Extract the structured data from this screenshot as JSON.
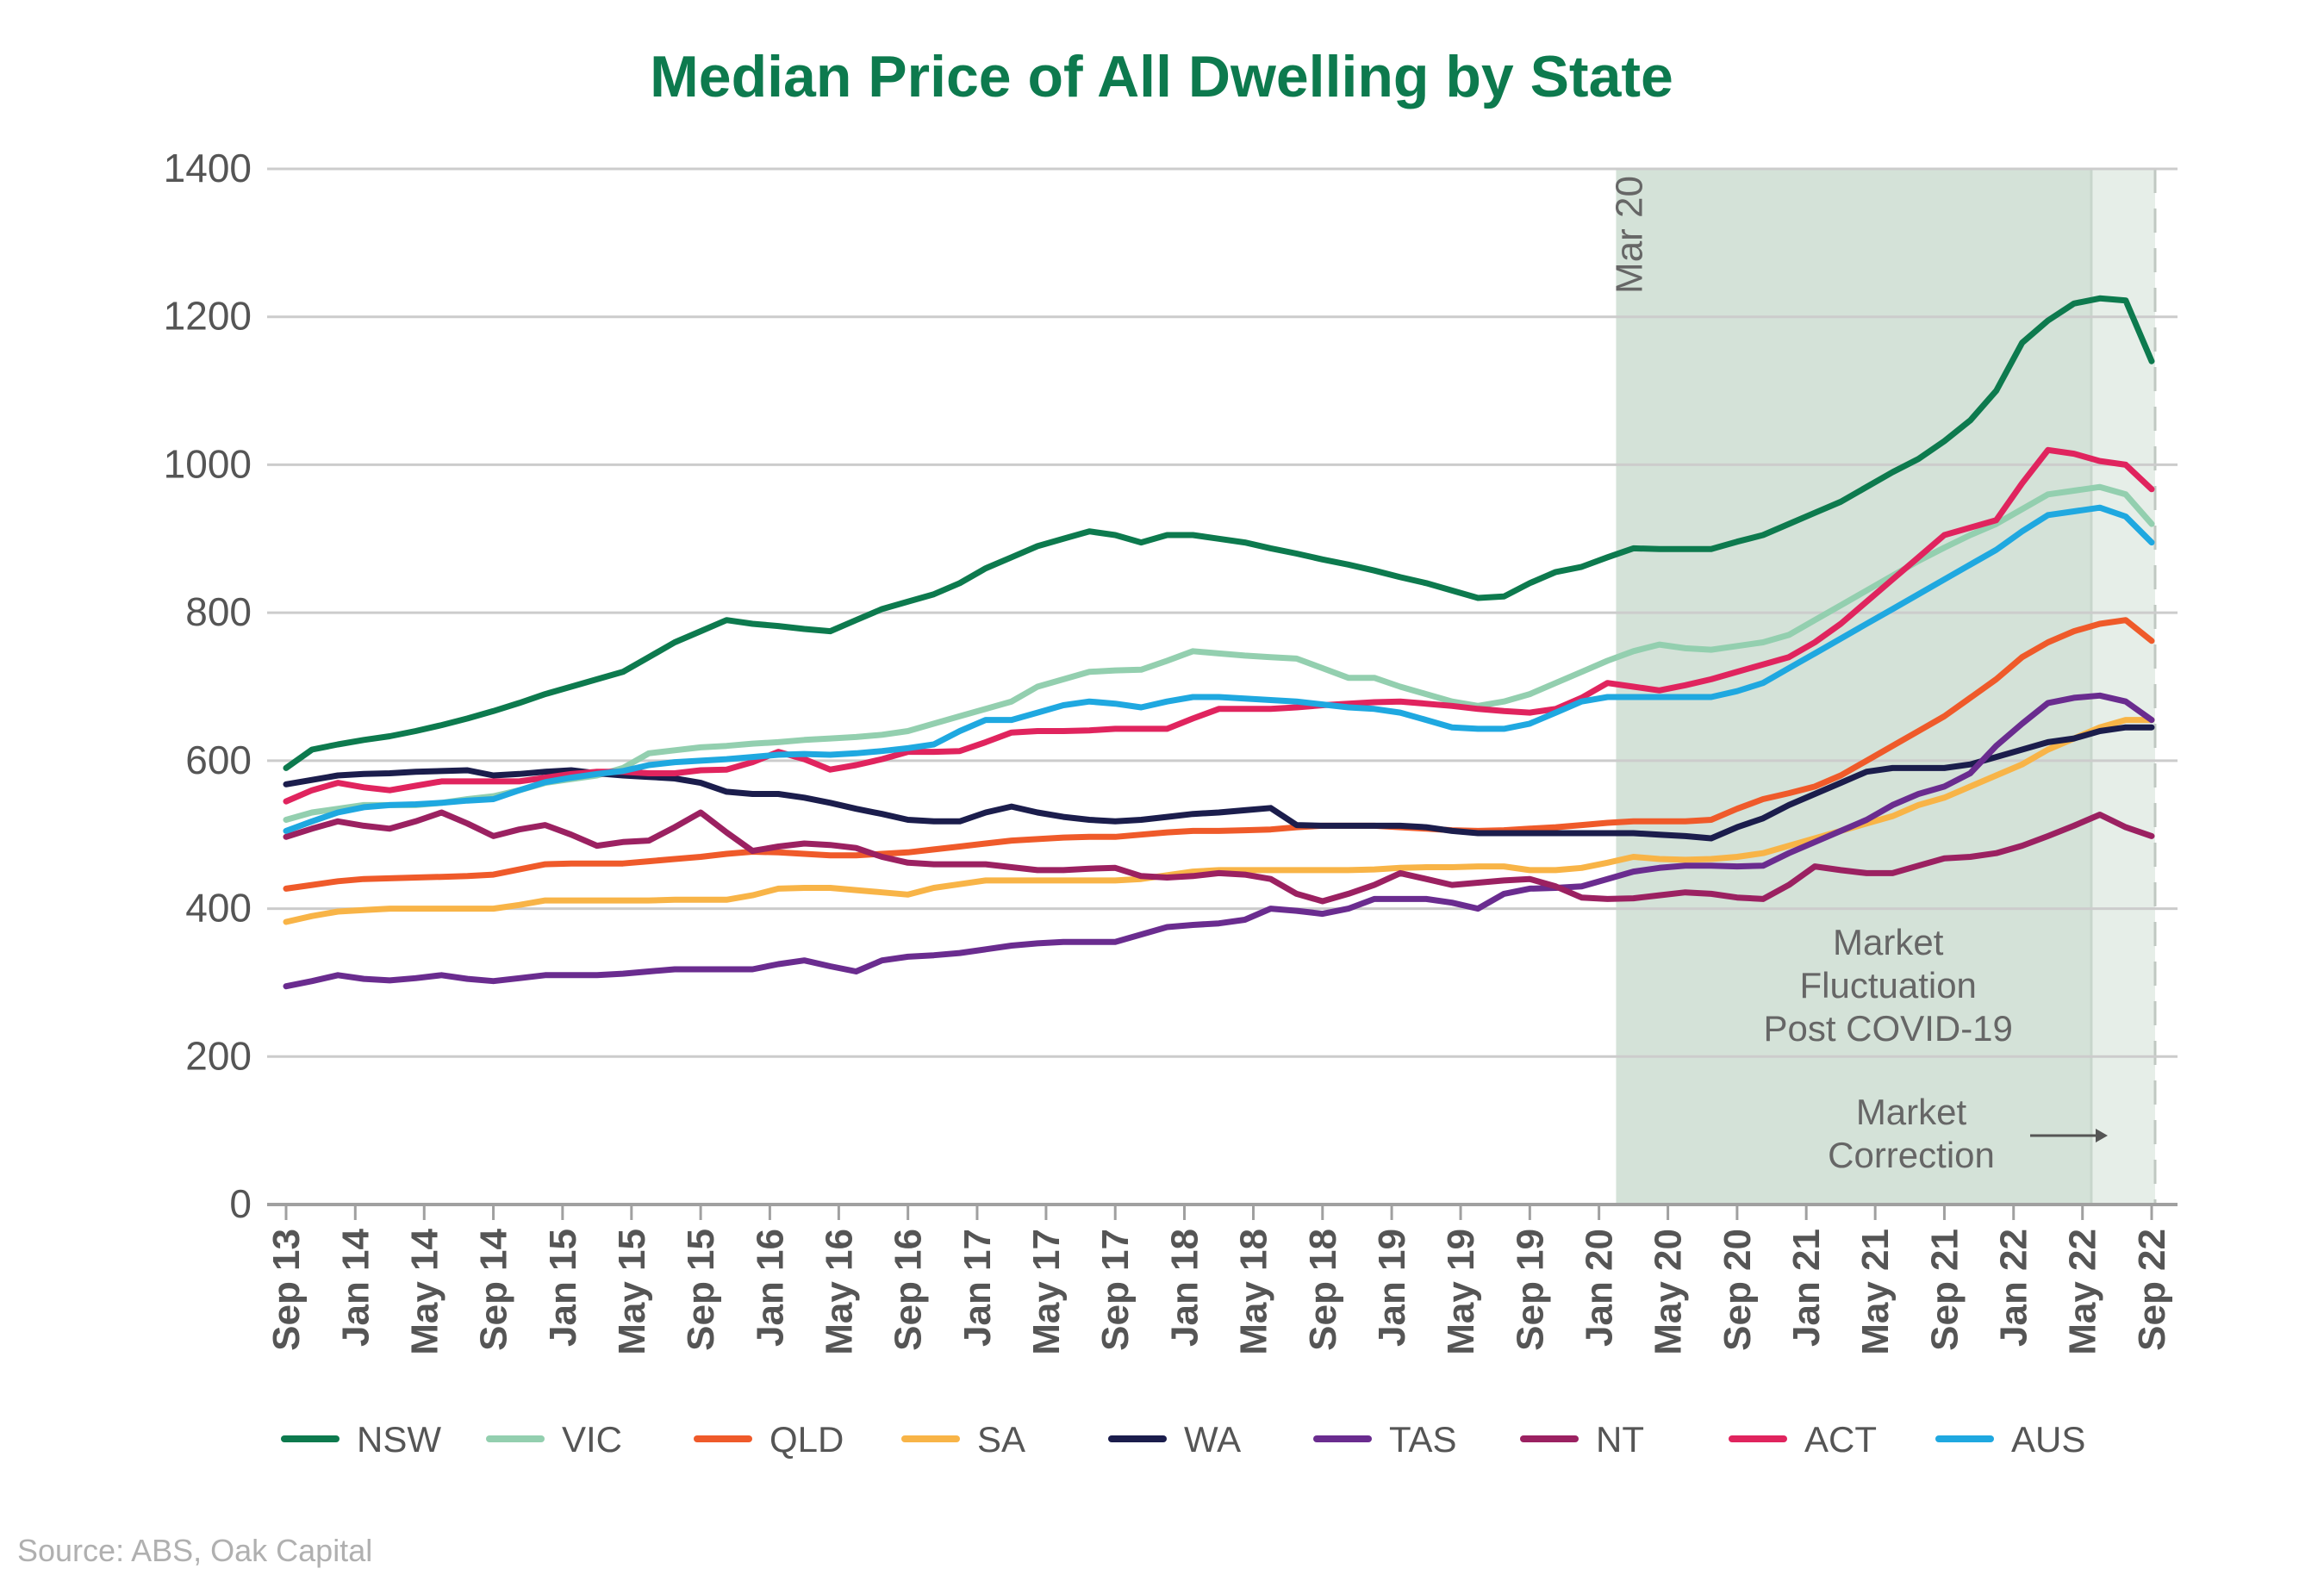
{
  "chart_data": {
    "type": "line",
    "title": "Median Price of All Dwelling by State",
    "source": "Source: ABS, Oak Capital",
    "xlabel": "",
    "ylabel": "",
    "ylim": [
      0,
      1400
    ],
    "yticks": [
      0,
      200,
      400,
      600,
      800,
      1000,
      1200,
      1400
    ],
    "grid": true,
    "legend_position": "bottom",
    "x_tick_labels": [
      "Sep 13",
      "Jan 14",
      "May 14",
      "Sep 14",
      "Jan 15",
      "May 15",
      "Sep 15",
      "Jan 16",
      "May 16",
      "Sep 16",
      "Jan 17",
      "May 17",
      "Sep 17",
      "Jan 18",
      "May 18",
      "Sep 18",
      "Jan 19",
      "May 19",
      "Sep 19",
      "Jan 20",
      "May 20",
      "Sep 20",
      "Jan 21",
      "May 21",
      "Sep 21",
      "Jan 22",
      "May 22",
      "Sep 22"
    ],
    "x_tick_index": [
      0,
      2.67,
      5.33,
      8,
      10.67,
      13.33,
      16,
      18.67,
      21.33,
      24,
      26.67,
      29.33,
      32,
      34.67,
      37.33,
      40,
      42.67,
      45.33,
      48,
      50.67,
      53.33,
      56,
      58.67,
      61.33,
      64,
      66.67,
      69.33,
      72
    ],
    "x_count": 73,
    "series": [
      {
        "name": "NSW",
        "color": "#0d7a4e",
        "values": [
          590,
          615,
          622,
          628,
          633,
          640,
          648,
          657,
          667,
          678,
          690,
          700,
          710,
          720,
          740,
          760,
          775,
          790,
          785,
          782,
          778,
          775,
          790,
          805,
          815,
          825,
          840,
          860,
          875,
          890,
          900,
          910,
          905,
          895,
          905,
          905,
          900,
          895,
          887,
          880,
          872,
          865,
          857,
          848,
          840,
          830,
          820,
          822,
          840,
          855,
          862,
          875,
          887,
          886,
          886,
          886,
          896,
          905,
          920,
          935,
          950,
          970,
          990,
          1008,
          1032,
          1060,
          1100,
          1165,
          1195,
          1218,
          1225,
          1222,
          1140
        ]
      },
      {
        "name": "VIC",
        "color": "#93cfaf",
        "values": [
          520,
          530,
          535,
          540,
          540,
          540,
          543,
          548,
          552,
          560,
          570,
          575,
          580,
          590,
          610,
          614,
          618,
          620,
          623,
          625,
          628,
          630,
          632,
          635,
          640,
          650,
          660,
          670,
          680,
          700,
          710,
          720,
          722,
          723,
          735,
          748,
          745,
          742,
          740,
          738,
          725,
          712,
          712,
          700,
          690,
          680,
          674,
          680,
          690,
          705,
          720,
          735,
          748,
          757,
          752,
          750,
          755,
          760,
          770,
          790,
          810,
          830,
          850,
          870,
          888,
          905,
          920,
          940,
          960,
          965,
          970,
          960,
          920
        ]
      },
      {
        "name": "QLD",
        "color": "#ef5a2a",
        "values": [
          427,
          432,
          437,
          440,
          441,
          442,
          443,
          444,
          446,
          453,
          460,
          461,
          461,
          461,
          464,
          467,
          470,
          474,
          477,
          476,
          474,
          472,
          472,
          474,
          476,
          480,
          484,
          488,
          492,
          494,
          496,
          497,
          497,
          500,
          503,
          505,
          505,
          506,
          507,
          510,
          512,
          512,
          512,
          510,
          508,
          506,
          505,
          506,
          508,
          510,
          513,
          516,
          518,
          518,
          518,
          520,
          535,
          548,
          556,
          565,
          580,
          600,
          620,
          640,
          660,
          685,
          710,
          740,
          760,
          775,
          785,
          790,
          762
        ]
      },
      {
        "name": "SA",
        "color": "#f8b447",
        "values": [
          382,
          390,
          396,
          398,
          400,
          400,
          400,
          400,
          400,
          405,
          411,
          411,
          411,
          411,
          411,
          412,
          412,
          412,
          418,
          427,
          428,
          428,
          425,
          422,
          419,
          428,
          433,
          438,
          438,
          438,
          438,
          438,
          438,
          440,
          445,
          450,
          452,
          452,
          452,
          452,
          452,
          452,
          453,
          455,
          456,
          456,
          457,
          457,
          452,
          452,
          455,
          462,
          470,
          467,
          466,
          467,
          470,
          475,
          485,
          495,
          505,
          515,
          525,
          540,
          550,
          565,
          580,
          595,
          615,
          630,
          645,
          655,
          655
        ]
      },
      {
        "name": "WA",
        "color": "#1b1d4c",
        "values": [
          568,
          574,
          580,
          582,
          583,
          585,
          586,
          587,
          580,
          582,
          585,
          587,
          583,
          580,
          578,
          576,
          570,
          558,
          555,
          555,
          550,
          543,
          535,
          528,
          520,
          518,
          518,
          530,
          538,
          530,
          524,
          520,
          518,
          520,
          524,
          528,
          530,
          533,
          536,
          513,
          512,
          512,
          512,
          512,
          510,
          505,
          502,
          502,
          502,
          502,
          502,
          502,
          502,
          500,
          498,
          495,
          510,
          522,
          540,
          555,
          570,
          585,
          590,
          590,
          590,
          595,
          605,
          615,
          625,
          630,
          640,
          645,
          645
        ]
      },
      {
        "name": "TAS",
        "color": "#6a2c8f",
        "values": [
          295,
          302,
          310,
          305,
          303,
          306,
          310,
          305,
          302,
          306,
          310,
          310,
          310,
          312,
          315,
          318,
          318,
          318,
          318,
          325,
          330,
          322,
          315,
          330,
          335,
          337,
          340,
          345,
          350,
          353,
          355,
          355,
          355,
          365,
          375,
          378,
          380,
          385,
          400,
          397,
          393,
          400,
          413,
          413,
          413,
          408,
          400,
          420,
          427,
          428,
          430,
          440,
          450,
          455,
          458,
          458,
          457,
          458,
          475,
          490,
          505,
          520,
          540,
          555,
          565,
          583,
          620,
          650,
          678,
          685,
          688,
          680,
          655
        ]
      },
      {
        "name": "NT",
        "color": "#9b2161",
        "values": [
          497,
          508,
          518,
          512,
          508,
          518,
          530,
          515,
          498,
          507,
          513,
          500,
          485,
          490,
          492,
          510,
          530,
          503,
          478,
          484,
          488,
          486,
          482,
          470,
          462,
          460,
          460,
          460,
          456,
          452,
          452,
          454,
          455,
          444,
          442,
          444,
          448,
          446,
          440,
          420,
          410,
          420,
          432,
          448,
          440,
          432,
          435,
          438,
          440,
          430,
          415,
          413,
          414,
          418,
          422,
          420,
          415,
          413,
          432,
          457,
          452,
          448,
          448,
          458,
          468,
          470,
          475,
          485,
          498,
          512,
          527,
          510,
          498
        ]
      },
      {
        "name": "ACT",
        "color": "#e0245e",
        "values": [
          545,
          560,
          570,
          564,
          560,
          566,
          572,
          572,
          572,
          572,
          577,
          582,
          585,
          585,
          583,
          583,
          587,
          588,
          598,
          612,
          602,
          588,
          594,
          602,
          612,
          612,
          613,
          625,
          638,
          640,
          640,
          641,
          643,
          643,
          643,
          657,
          670,
          670,
          670,
          672,
          675,
          677,
          679,
          680,
          677,
          674,
          670,
          667,
          665,
          670,
          685,
          705,
          700,
          695,
          702,
          710,
          720,
          730,
          740,
          760,
          785,
          815,
          845,
          875,
          905,
          915,
          925,
          975,
          1020,
          1015,
          1005,
          1000,
          967
        ]
      },
      {
        "name": "AUS",
        "color": "#1fa8e0",
        "values": [
          505,
          518,
          530,
          537,
          540,
          541,
          543,
          546,
          548,
          560,
          571,
          577,
          582,
          586,
          594,
          598,
          600,
          602,
          605,
          608,
          609,
          608,
          610,
          613,
          617,
          622,
          640,
          655,
          655,
          665,
          675,
          680,
          677,
          672,
          680,
          686,
          686,
          684,
          682,
          680,
          676,
          672,
          670,
          665,
          655,
          645,
          643,
          643,
          650,
          665,
          680,
          686,
          686,
          686,
          686,
          686,
          694,
          705,
          725,
          745,
          765,
          785,
          805,
          825,
          845,
          865,
          885,
          910,
          932,
          937,
          942,
          930,
          895
        ]
      }
    ],
    "annotations": {
      "covid_start_label": "Mar 20",
      "covid_start_index": 51.33,
      "correction_start_index": 69.67,
      "end_index": 73,
      "fluctuation_label_lines": [
        "Market",
        "Fluctuation",
        "Post COVID-19"
      ],
      "correction_label_lines": [
        "Market",
        "Correction"
      ],
      "covid_band_color": "#d4e2d8",
      "correction_band_color": "#e6eee8"
    },
    "title_color": "#0d7a4e",
    "axis_color": "#a0a0a0",
    "grid_color": "#cccccc",
    "text_color": "#555555",
    "source_color": "#b0b0b0"
  }
}
